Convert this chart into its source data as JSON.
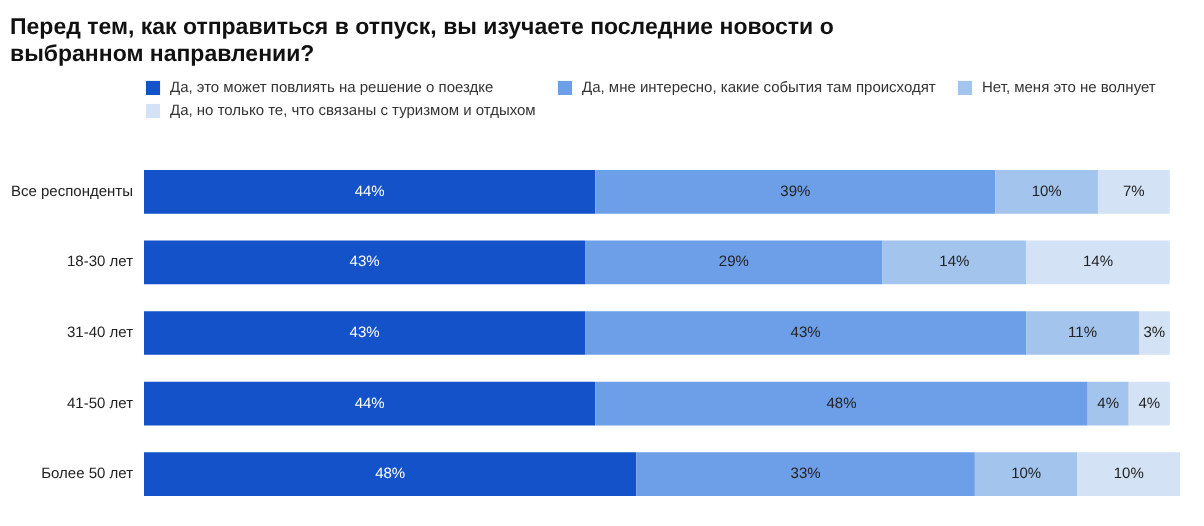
{
  "chart_data": {
    "type": "bar",
    "orientation": "horizontal",
    "stacked": true,
    "data_labels": false,
    "legend": "top",
    "title": "Перед тем, как отправиться в отпуск, вы изучаете последние новости о выбранном направлении?",
    "categories": [
      "Все респонденты",
      "18-30 лет",
      "31-40 лет",
      "41-50 лет",
      "Более 50 лет"
    ],
    "series": [
      {
        "name": "Да, это может повлиять на решение о поездке",
        "color": "#1352c8",
        "values": [
          44,
          43,
          43,
          44,
          48
        ],
        "value_labels": [
          "44%",
          "43%",
          "43%",
          "44%",
          "48%"
        ]
      },
      {
        "name": "Да, мне интересно, какие события там происходят",
        "color": "#6d9ee8",
        "values": [
          39,
          29,
          43,
          48,
          33
        ],
        "value_labels": [
          "39%",
          "29%",
          "43%",
          "48%",
          "33%"
        ]
      },
      {
        "name": "Нет, меня это не волнует",
        "color": "#a3c4ec",
        "values": [
          10,
          14,
          11,
          4,
          10
        ],
        "value_labels": [
          "10%",
          "14%",
          "11%",
          "4%",
          "10%"
        ]
      },
      {
        "name": "Да, но только те, что связаны с туризмом и отдыхом",
        "color": "#d3e2f5",
        "values": [
          7,
          14,
          3,
          4,
          10
        ],
        "value_labels": [
          "7%",
          "14%",
          "3%",
          "4%",
          "10%"
        ]
      }
    ]
  }
}
